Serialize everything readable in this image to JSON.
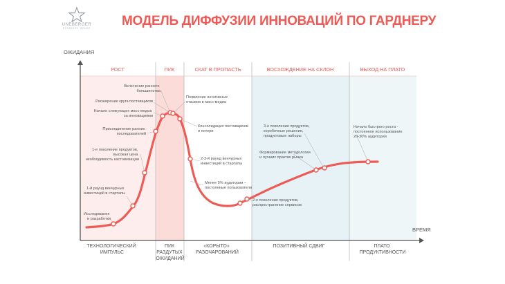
{
  "logo": {
    "name": "UNEBERGER",
    "tagline": "STRATEGY HOUSE"
  },
  "title": "МОДЕЛЬ ДИФФУЗИИ ИННОВАЦИЙ ПО ГАРДНЕРУ",
  "axes": {
    "y_label": "ОЖИДАНИЯ",
    "x_label": "ВРЕМЯ"
  },
  "phases_top": [
    "РОСТ",
    "ПИК",
    "СКАТ В ПРОПАСТЬ",
    "ВОСХОЖДЕНИЕ НА СКЛОН",
    "ВЫХОД НА ПЛАТО"
  ],
  "phases_bottom": [
    [
      "ТЕХНОЛОГИЧЕСКИЙ",
      "ИМПУЛЬС"
    ],
    [
      "ПИК",
      "РАЗДУТЫХ",
      "ОЖИДАНИЙ"
    ],
    [
      "«КОРЫТО»",
      "РАЗОЧАРОВАНИЙ"
    ],
    [
      "ПОЗИТИВНЫЙ СДВИГ"
    ],
    [
      "ПЛАТО",
      "ПРОДУКТИВНОСТИ"
    ]
  ],
  "annotations": [
    [
      "Исследования",
      "и разработки"
    ],
    [
      "1-й раунд венчурных",
      "инвестиций в стартапы"
    ],
    [
      "1-е поколение продуктов,",
      "высокая цена",
      "необходимость кастомизации"
    ],
    [
      "Присоединение ранних",
      "последователей"
    ],
    [
      "Начало слежующих масс-медиа",
      "за инновациями"
    ],
    [
      "Расширение круга поставщиков"
    ],
    [
      "Включение раннего",
      "большинства"
    ],
    [
      "Появление негативных",
      "отзывов в масс-медиа"
    ],
    [
      "Консолидация поставщиков",
      "и потери"
    ],
    [
      "2-3-й раунд венчурных",
      "инвестиций в стартапы"
    ],
    [
      "Менее 5% аудитории –",
      "постоянные пользователи"
    ],
    [
      "2-е поколение продуктов,",
      "распространение сервисов"
    ],
    [
      "Формирование методологии",
      "и лучших практик рынка"
    ],
    [
      "3-е поколение продуктов,",
      "коробочные решения,",
      "продуктовые наборы"
    ],
    [
      "Начало быстрого роста -",
      "постоянное использование",
      "20-30% аудитории"
    ]
  ],
  "colors": {
    "accent": "#ec5b55",
    "zone_rise": "#fdeeed",
    "zone_peak": "#fbdcd9",
    "zone_slope": "#e6f2f5",
    "zone_plateau": "#eef6f8",
    "text": "#555555",
    "axis": "#555555"
  }
}
